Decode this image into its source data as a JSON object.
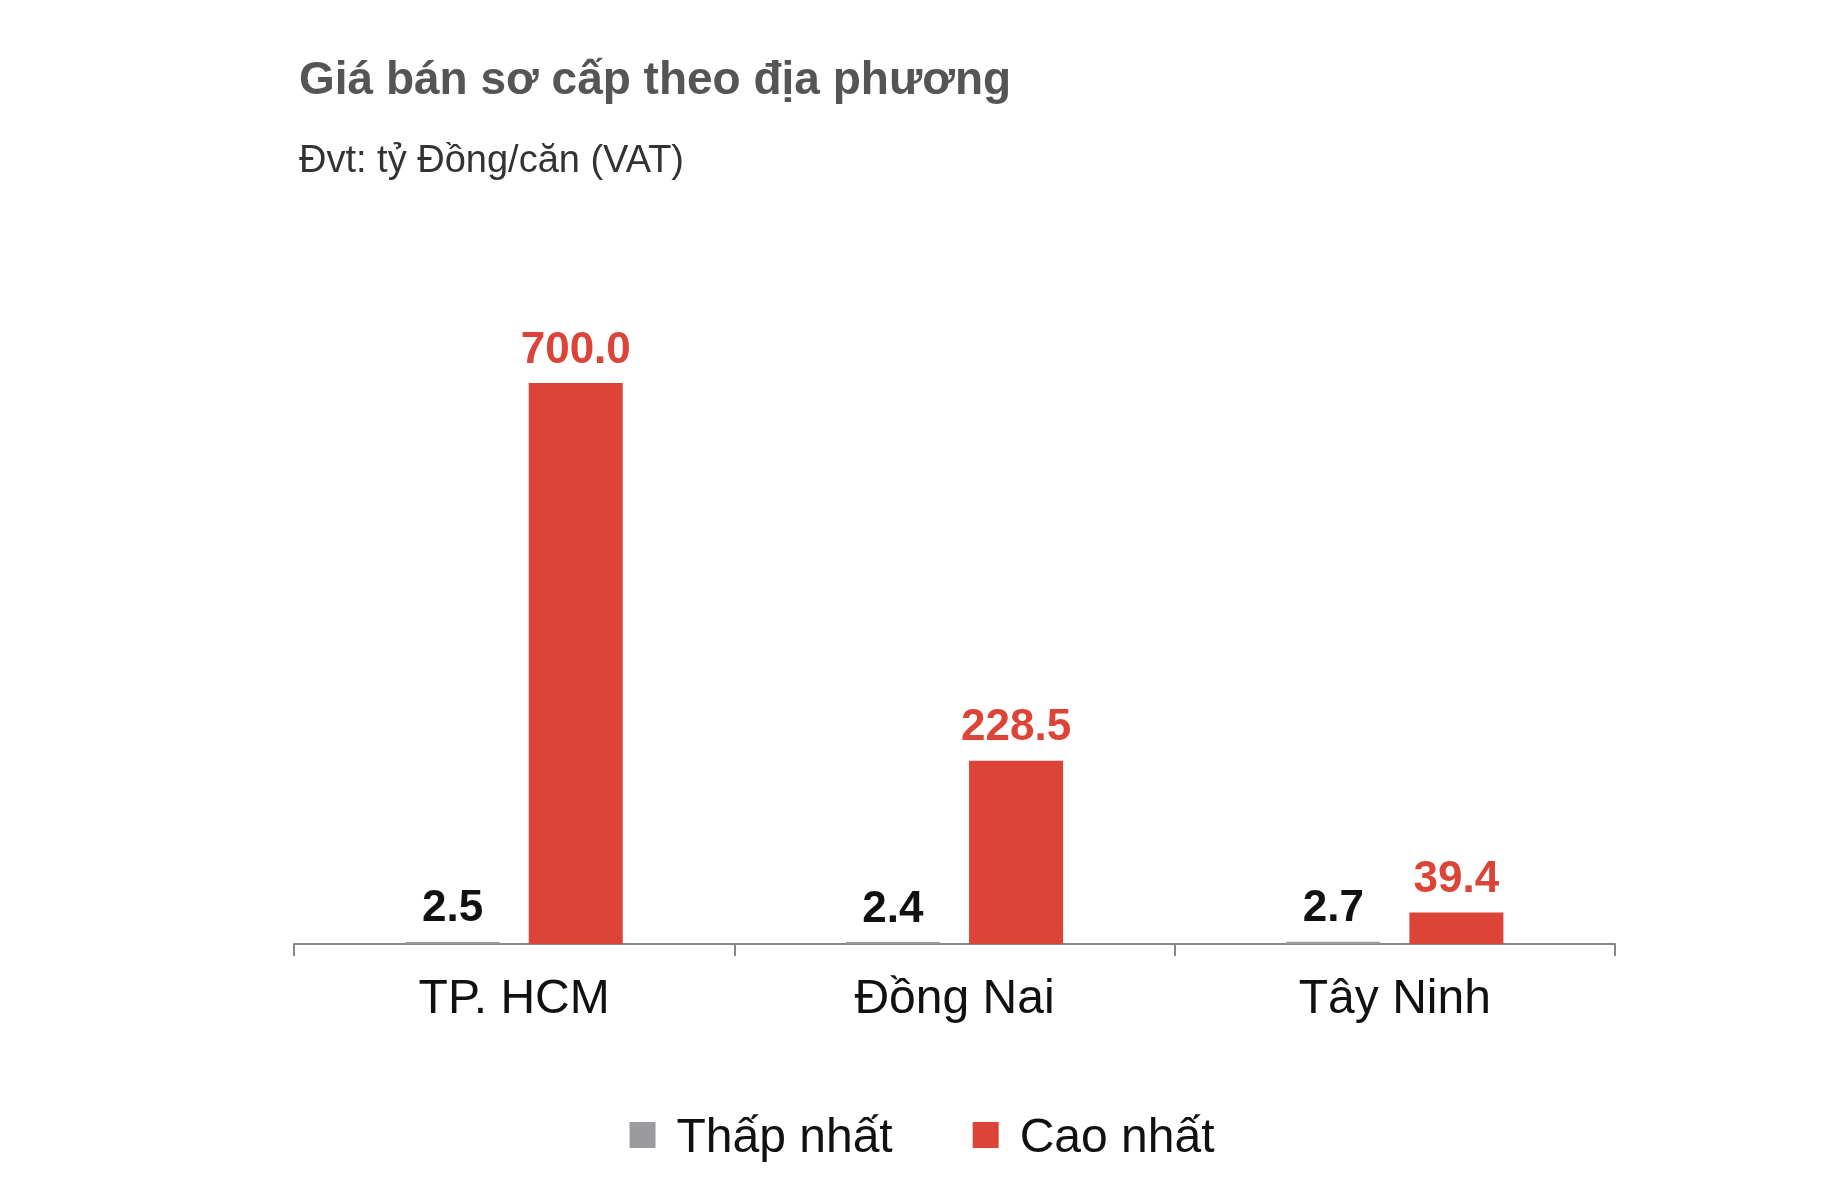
{
  "chart_data": {
    "type": "bar",
    "title": "Giá bán sơ cấp theo địa phương",
    "subtitle": "Đvt: tỷ Đồng/căn (VAT)",
    "categories": [
      "TP. HCM",
      "Đồng Nai",
      "Tây Ninh"
    ],
    "series": [
      {
        "name": "Thấp nhất",
        "color": "#9b9a9f",
        "values": [
          2.5,
          2.4,
          2.7
        ],
        "value_labels": [
          "2.5",
          "2.4",
          "2.7"
        ]
      },
      {
        "name": "Cao nhất",
        "color": "#dc4437",
        "values": [
          700,
          228.5,
          39.4
        ],
        "value_labels": [
          "700.0",
          "228.5",
          "39.4"
        ]
      }
    ],
    "legend": "bottom"
  }
}
